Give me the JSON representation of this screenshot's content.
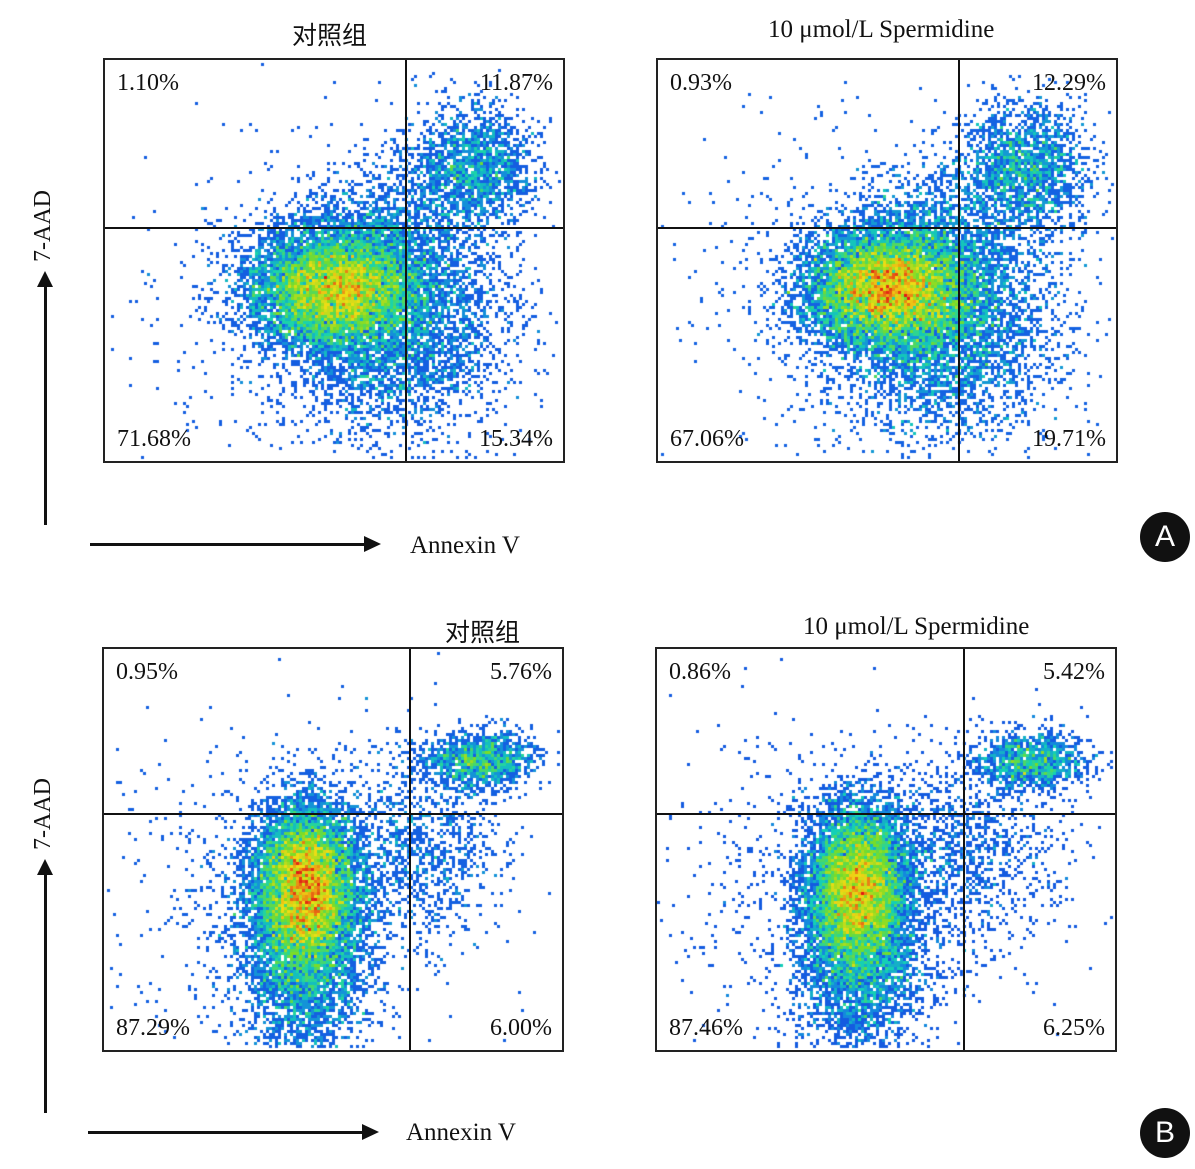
{
  "figure": {
    "x_axis_label": "Annexin V",
    "y_axis_label": "7-AAD"
  },
  "panels": [
    {
      "id": "A",
      "badge": "A",
      "plots": [
        {
          "title": "对照组",
          "quadrants": {
            "ul": "1.10%",
            "ur": "11.87%",
            "ll": "71.68%",
            "lr": "15.34%"
          }
        },
        {
          "title": "10 μmol/L Spermidine",
          "quadrants": {
            "ul": "0.93%",
            "ur": "12.29%",
            "ll": "67.06%",
            "lr": "19.71%"
          }
        }
      ]
    },
    {
      "id": "B",
      "badge": "B",
      "plots": [
        {
          "title": "对照组",
          "quadrants": {
            "ul": "0.95%",
            "ur": "5.76%",
            "ll": "87.29%",
            "lr": "6.00%"
          }
        },
        {
          "title": "10 μmol/L Spermidine",
          "quadrants": {
            "ul": "0.86%",
            "ur": "5.42%",
            "ll": "87.46%",
            "lr": "6.25%"
          }
        }
      ]
    }
  ],
  "chart_data": [
    {
      "type": "scatter",
      "panel": "A",
      "title": "对照组",
      "xlabel": "Annexin V",
      "ylabel": "7-AAD",
      "quadrant_percentages": {
        "upper_left": 1.1,
        "upper_right": 11.87,
        "lower_left": 71.68,
        "lower_right": 15.34
      }
    },
    {
      "type": "scatter",
      "panel": "A",
      "title": "10 μmol/L Spermidine",
      "xlabel": "Annexin V",
      "ylabel": "7-AAD",
      "quadrant_percentages": {
        "upper_left": 0.93,
        "upper_right": 12.29,
        "lower_left": 67.06,
        "lower_right": 19.71
      }
    },
    {
      "type": "scatter",
      "panel": "B",
      "title": "对照组",
      "xlabel": "Annexin V",
      "ylabel": "7-AAD",
      "quadrant_percentages": {
        "upper_left": 0.95,
        "upper_right": 5.76,
        "lower_left": 87.29,
        "lower_right": 6.0
      }
    },
    {
      "type": "scatter",
      "panel": "B",
      "title": "10 μmol/L Spermidine",
      "xlabel": "Annexin V",
      "ylabel": "7-AAD",
      "quadrant_percentages": {
        "upper_left": 0.86,
        "upper_right": 5.42,
        "lower_left": 87.46,
        "lower_right": 6.25
      }
    }
  ]
}
